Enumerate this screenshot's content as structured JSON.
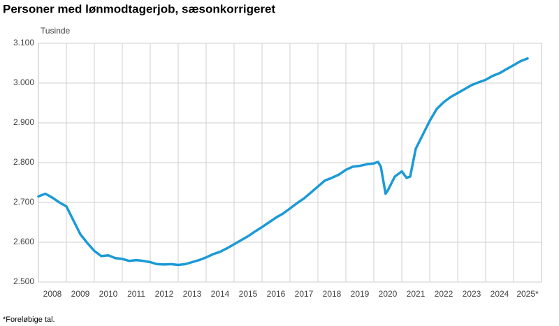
{
  "chart_data": {
    "type": "line",
    "title": "Personer med lønmodtagerjob, sæsonkorrigeret",
    "y_label": "Tusinde",
    "footnote": "*Foreløbige tal.",
    "categories": [
      "2008",
      "2009",
      "2010",
      "2011",
      "2012",
      "2013",
      "2014",
      "2015",
      "2016",
      "2017",
      "2018",
      "2019",
      "2020",
      "2021",
      "2022",
      "2023",
      "2024",
      "2025*"
    ],
    "xlim": [
      2008,
      2026
    ],
    "x": [
      2008,
      2008.25,
      2008.5,
      2008.75,
      2009,
      2009.25,
      2009.5,
      2009.75,
      2010,
      2010.25,
      2010.5,
      2010.75,
      2011,
      2011.25,
      2011.5,
      2011.75,
      2012,
      2012.25,
      2012.5,
      2012.75,
      2013,
      2013.25,
      2013.5,
      2013.75,
      2014,
      2014.25,
      2014.5,
      2014.75,
      2015,
      2015.25,
      2015.5,
      2015.75,
      2016,
      2016.25,
      2016.5,
      2016.75,
      2017,
      2017.25,
      2017.5,
      2017.75,
      2018,
      2018.25,
      2018.5,
      2018.75,
      2019,
      2019.25,
      2019.5,
      2019.75,
      2020,
      2020.15,
      2020.25,
      2020.42,
      2020.5,
      2020.75,
      2021,
      2021.17,
      2021.3,
      2021.5,
      2021.75,
      2022,
      2022.25,
      2022.5,
      2022.75,
      2023,
      2023.25,
      2023.5,
      2023.75,
      2024,
      2024.25,
      2024.5,
      2024.75,
      2025,
      2025.25,
      2025.5
    ],
    "values": [
      2715,
      2722,
      2712,
      2700,
      2690,
      2655,
      2620,
      2598,
      2578,
      2565,
      2567,
      2560,
      2558,
      2553,
      2555,
      2553,
      2550,
      2545,
      2544,
      2545,
      2543,
      2545,
      2550,
      2555,
      2562,
      2570,
      2576,
      2585,
      2595,
      2605,
      2615,
      2627,
      2638,
      2650,
      2662,
      2672,
      2685,
      2698,
      2710,
      2725,
      2740,
      2755,
      2762,
      2770,
      2782,
      2790,
      2792,
      2796,
      2798,
      2802,
      2790,
      2722,
      2730,
      2765,
      2778,
      2762,
      2765,
      2835,
      2870,
      2905,
      2935,
      2952,
      2965,
      2975,
      2985,
      2995,
      3002,
      3008,
      3018,
      3025,
      3035,
      3045,
      3055,
      3062
    ],
    "color": "#1b9ad6",
    "ylim": [
      2500,
      3100
    ],
    "yticks": [
      {
        "value": 2500,
        "label": "2.500"
      },
      {
        "value": 2600,
        "label": "2.600"
      },
      {
        "value": 2700,
        "label": "2.700"
      },
      {
        "value": 2800,
        "label": "2.800"
      },
      {
        "value": 2900,
        "label": "2.900"
      },
      {
        "value": 3000,
        "label": "3.000"
      },
      {
        "value": 3100,
        "label": "3.100"
      }
    ],
    "grid": true
  }
}
